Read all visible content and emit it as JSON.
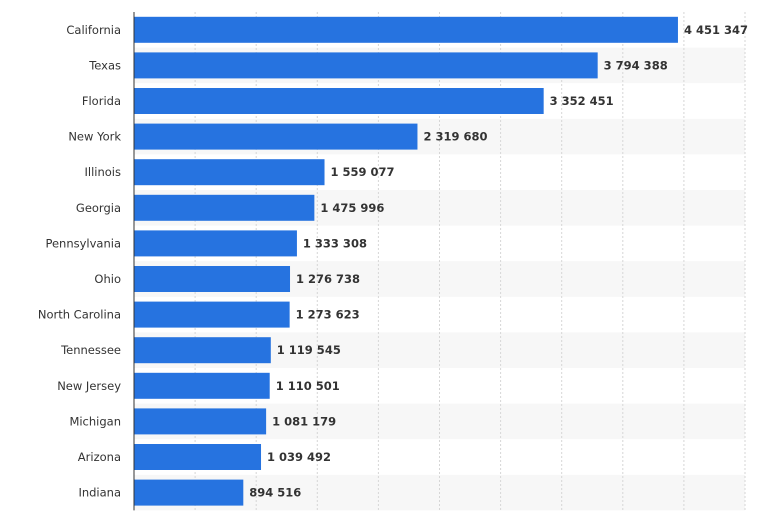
{
  "chart_data": {
    "type": "bar",
    "orientation": "horizontal",
    "title": "",
    "xlabel": "",
    "ylabel": "",
    "categories": [
      "California",
      "Texas",
      "Florida",
      "New York",
      "Illinois",
      "Georgia",
      "Pennsylvania",
      "Ohio",
      "North Carolina",
      "Tennessee",
      "New Jersey",
      "Michigan",
      "Arizona",
      "Indiana"
    ],
    "values": [
      4451347,
      3794388,
      3352451,
      2319680,
      1559077,
      1475996,
      1333308,
      1276738,
      1273623,
      1119545,
      1110501,
      1081179,
      1039492,
      894516
    ],
    "value_labels": [
      "4 451 347",
      "3 794 388",
      "3 352 451",
      "2 319 680",
      "1 559 077",
      "1 475 996",
      "1 333 308",
      "1 276 738",
      "1 273 623",
      "1 119 545",
      "1 110 501",
      "1 081 179",
      "1 039 492",
      "894 516"
    ],
    "xlim": [
      0,
      5000000
    ],
    "grid": true,
    "legend": "none",
    "bar_color": "#2673e0",
    "band_color": "#f7f7f7",
    "grid_color": "#d6d6d6",
    "axis_color": "#333333",
    "label_color": "#333333"
  }
}
